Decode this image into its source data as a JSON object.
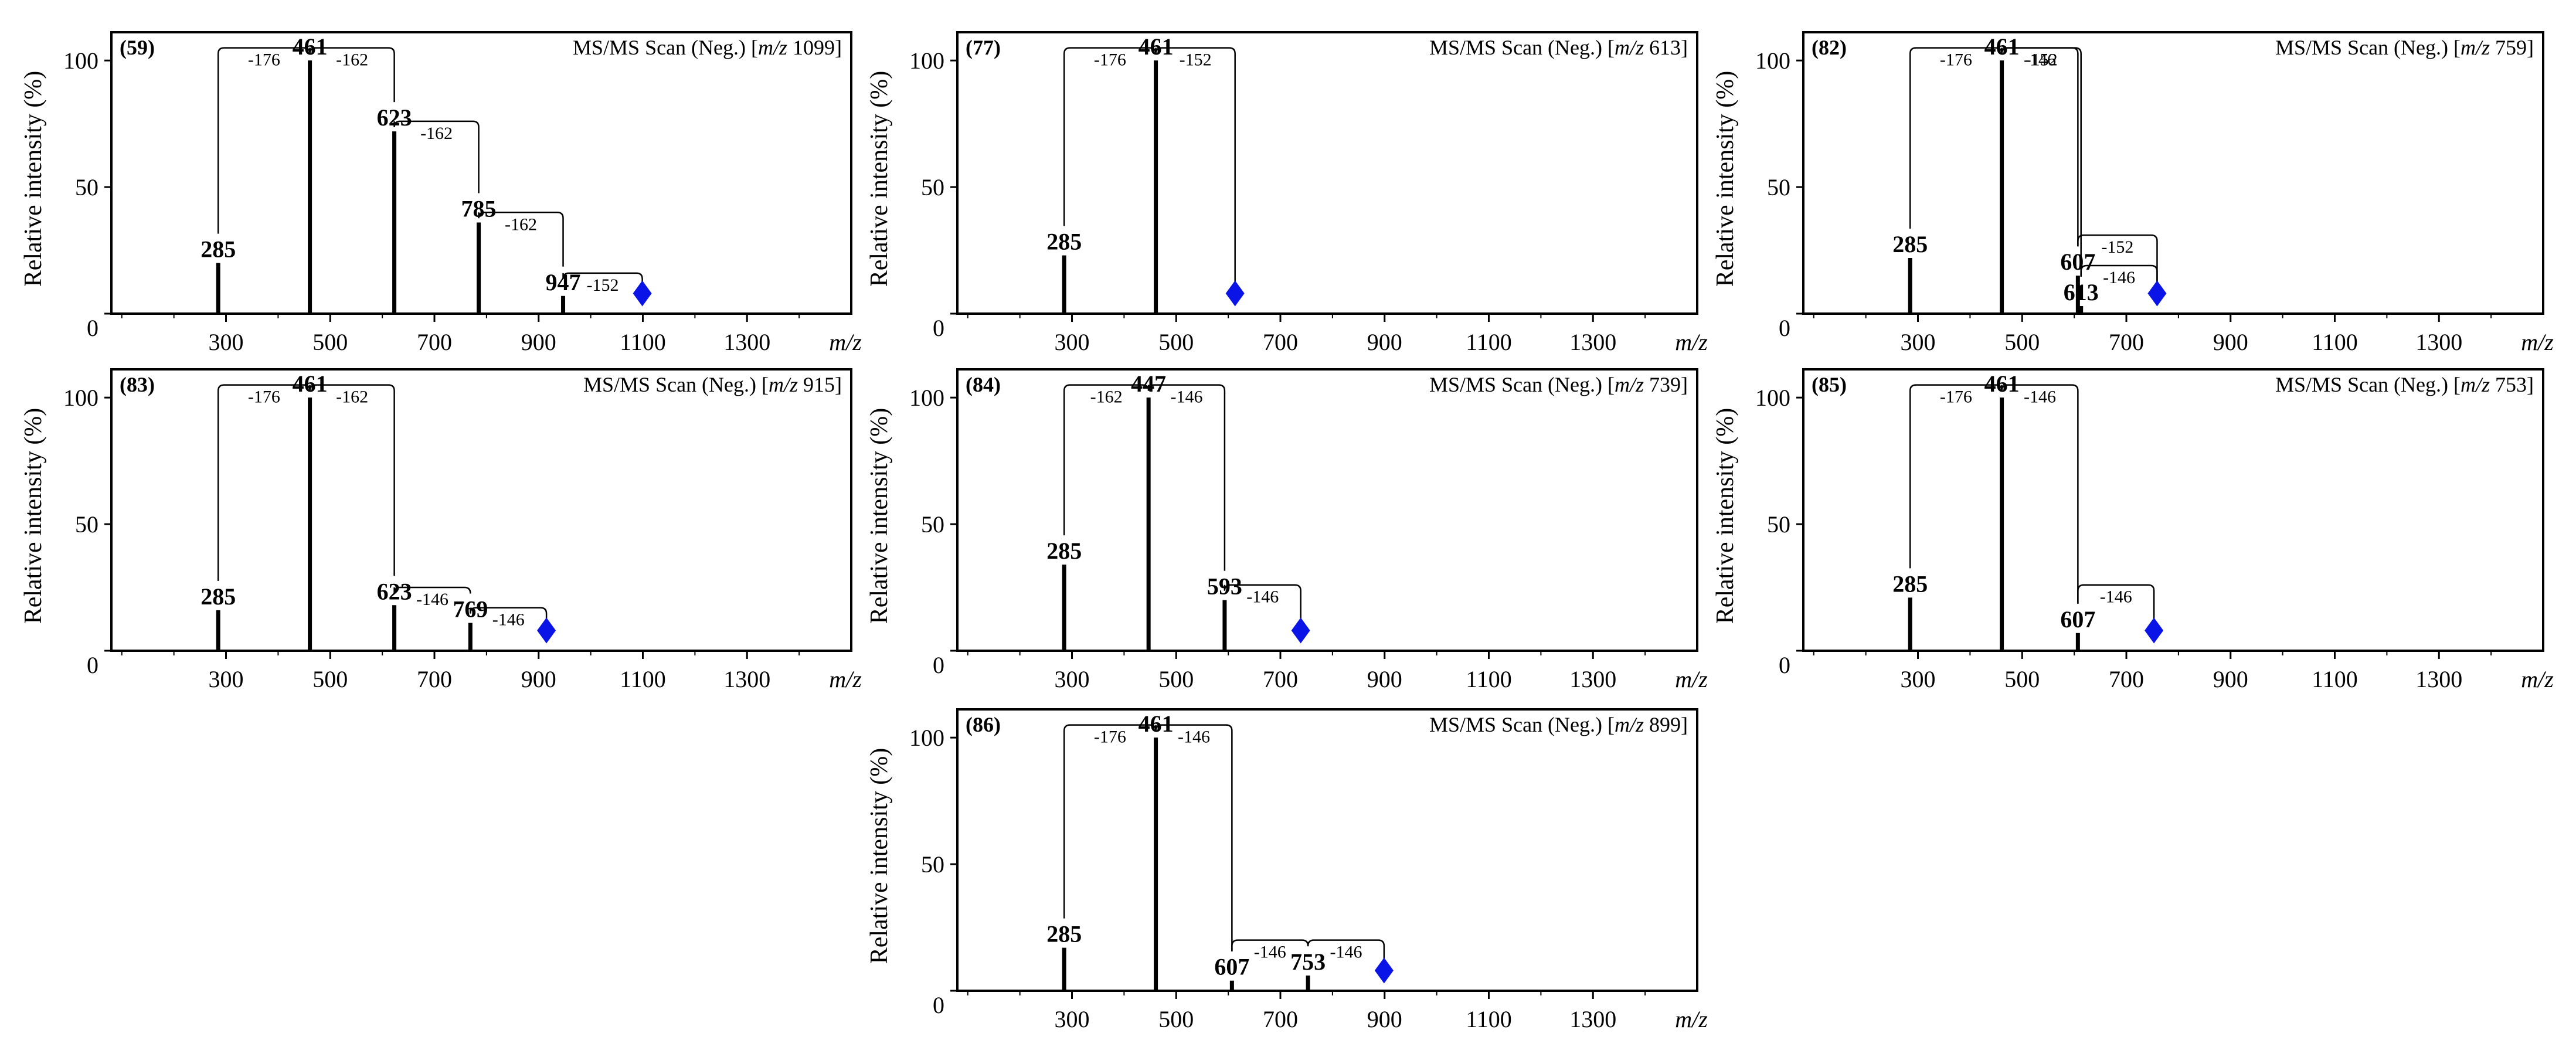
{
  "colors": {
    "axis": "#000000",
    "marker": "#0a14e6",
    "background": "#ffffff"
  },
  "common": {
    "ylabel": "Relative intensity (%)",
    "xunit": "m/z",
    "yticks": [
      0,
      50,
      100
    ],
    "xticks": [
      300,
      500,
      700,
      900,
      1100,
      1300
    ],
    "xlim": [
      80,
      1500
    ],
    "ylim": [
      0,
      110
    ]
  },
  "chart_data": [
    {
      "type": "bar",
      "id": "(59)",
      "title_prefix": "MS/MS Scan (Neg.) [",
      "title_mz": "m/z",
      "title_value": "1099]",
      "peaks": [
        {
          "mz": 285,
          "intensity": 20,
          "label": "285"
        },
        {
          "mz": 461,
          "intensity": 100,
          "label": "461"
        },
        {
          "mz": 623,
          "intensity": 72,
          "label": "623"
        },
        {
          "mz": 785,
          "intensity": 36,
          "label": "785"
        },
        {
          "mz": 947,
          "intensity": 7,
          "label": "947"
        }
      ],
      "precursor": {
        "mz": 1099
      },
      "losses": [
        {
          "from": 461,
          "to": 285,
          "label": "-176",
          "level": 105
        },
        {
          "from": 623,
          "to": 461,
          "label": "-162",
          "level": 105
        },
        {
          "from": 785,
          "to": 623,
          "label": "-162",
          "level": 76
        },
        {
          "from": 947,
          "to": 785,
          "label": "-162",
          "level": 40
        },
        {
          "from": 1099,
          "to": 947,
          "label": "-152",
          "level": 16
        }
      ]
    },
    {
      "type": "bar",
      "id": "(77)",
      "title_prefix": "MS/MS Scan (Neg.) [",
      "title_mz": "m/z",
      "title_value": "613]",
      "peaks": [
        {
          "mz": 285,
          "intensity": 23,
          "label": "285"
        },
        {
          "mz": 461,
          "intensity": 100,
          "label": "461"
        }
      ],
      "precursor": {
        "mz": 613
      },
      "losses": [
        {
          "from": 461,
          "to": 285,
          "label": "-176",
          "level": 105
        },
        {
          "from": 613,
          "to": 461,
          "label": "-152",
          "level": 105
        }
      ]
    },
    {
      "type": "bar",
      "id": "(82)",
      "title_prefix": "MS/MS Scan (Neg.) [",
      "title_mz": "m/z",
      "title_value": "759]",
      "peaks": [
        {
          "mz": 285,
          "intensity": 22,
          "label": "285"
        },
        {
          "mz": 461,
          "intensity": 100,
          "label": "461"
        },
        {
          "mz": 607,
          "intensity": 15,
          "label": "607"
        },
        {
          "mz": 613,
          "intensity": 3,
          "label": "613"
        }
      ],
      "precursor": {
        "mz": 759
      },
      "losses": [
        {
          "from": 461,
          "to": 285,
          "label": "-176",
          "level": 105
        },
        {
          "from": 607,
          "to": 461,
          "label": "-146",
          "level": 105
        },
        {
          "from": 613,
          "to": 461,
          "label": "-152",
          "level": 105
        },
        {
          "from": 759,
          "to": 607,
          "label": "-152",
          "level": 31
        },
        {
          "from": 759,
          "to": 613,
          "label": "-146",
          "level": 19
        }
      ]
    },
    {
      "type": "bar",
      "id": "(83)",
      "title_prefix": "MS/MS Scan (Neg.) [",
      "title_mz": "m/z",
      "title_value": "915]",
      "peaks": [
        {
          "mz": 285,
          "intensity": 16,
          "label": "285"
        },
        {
          "mz": 461,
          "intensity": 100,
          "label": "461"
        },
        {
          "mz": 623,
          "intensity": 18,
          "label": "623"
        },
        {
          "mz": 769,
          "intensity": 11,
          "label": "769"
        }
      ],
      "precursor": {
        "mz": 915
      },
      "losses": [
        {
          "from": 461,
          "to": 285,
          "label": "-176",
          "level": 105
        },
        {
          "from": 623,
          "to": 461,
          "label": "-162",
          "level": 105
        },
        {
          "from": 769,
          "to": 623,
          "label": "-146",
          "level": 25
        },
        {
          "from": 915,
          "to": 769,
          "label": "-146",
          "level": 17
        }
      ]
    },
    {
      "type": "bar",
      "id": "(84)",
      "title_prefix": "MS/MS Scan (Neg.) [",
      "title_mz": "m/z",
      "title_value": "739]",
      "peaks": [
        {
          "mz": 285,
          "intensity": 34,
          "label": "285"
        },
        {
          "mz": 447,
          "intensity": 100,
          "label": "447"
        },
        {
          "mz": 593,
          "intensity": 20,
          "label": "593"
        }
      ],
      "precursor": {
        "mz": 739
      },
      "losses": [
        {
          "from": 447,
          "to": 285,
          "label": "-162",
          "level": 105
        },
        {
          "from": 593,
          "to": 447,
          "label": "-146",
          "level": 105
        },
        {
          "from": 739,
          "to": 593,
          "label": "-146",
          "level": 26
        }
      ]
    },
    {
      "type": "bar",
      "id": "(85)",
      "title_prefix": "MS/MS Scan (Neg.) [",
      "title_mz": "m/z",
      "title_value": "753]",
      "peaks": [
        {
          "mz": 285,
          "intensity": 21,
          "label": "285"
        },
        {
          "mz": 461,
          "intensity": 100,
          "label": "461"
        },
        {
          "mz": 607,
          "intensity": 7,
          "label": "607"
        }
      ],
      "precursor": {
        "mz": 753
      },
      "losses": [
        {
          "from": 461,
          "to": 285,
          "label": "-176",
          "level": 105
        },
        {
          "from": 607,
          "to": 461,
          "label": "-146",
          "level": 105
        },
        {
          "from": 753,
          "to": 607,
          "label": "-146",
          "level": 26
        }
      ]
    },
    {
      "type": "bar",
      "id": "(86)",
      "title_prefix": "MS/MS Scan (Neg.) [",
      "title_mz": "m/z",
      "title_value": "899]",
      "peaks": [
        {
          "mz": 285,
          "intensity": 17,
          "label": "285"
        },
        {
          "mz": 461,
          "intensity": 100,
          "label": "461"
        },
        {
          "mz": 607,
          "intensity": 4,
          "label": "607"
        },
        {
          "mz": 753,
          "intensity": 6,
          "label": "753"
        }
      ],
      "precursor": {
        "mz": 899
      },
      "losses": [
        {
          "from": 461,
          "to": 285,
          "label": "-176",
          "level": 105
        },
        {
          "from": 607,
          "to": 461,
          "label": "-146",
          "level": 105
        },
        {
          "from": 753,
          "to": 607,
          "label": "-146",
          "level": 20
        },
        {
          "from": 899,
          "to": 753,
          "label": "-146",
          "level": 20
        }
      ]
    }
  ]
}
